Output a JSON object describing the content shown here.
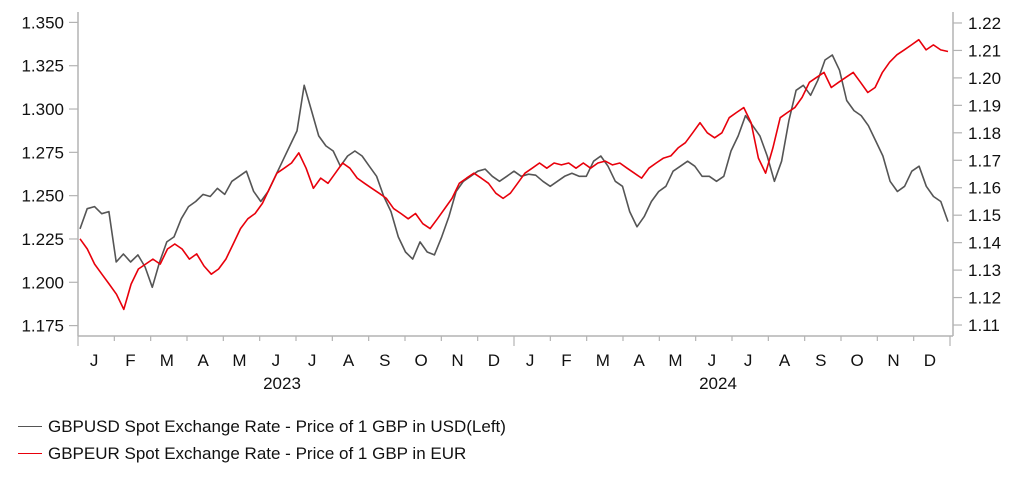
{
  "chart_data": {
    "type": "line",
    "title": "",
    "xlabel": "",
    "ylabel_left": "",
    "ylabel_right": "",
    "grid": false,
    "legend_position": "bottom-left",
    "x_start": "2023-01",
    "x_end": "2024-12",
    "x_frequency": "weekly",
    "month_labels": [
      "J",
      "F",
      "M",
      "A",
      "M",
      "J",
      "J",
      "A",
      "S",
      "O",
      "N",
      "D",
      "J",
      "F",
      "M",
      "A",
      "M",
      "J",
      "J",
      "A",
      "S",
      "O",
      "N",
      "D"
    ],
    "year_labels": [
      "2023",
      "2024"
    ],
    "y_left": {
      "ticks": [
        "1.175",
        "1.200",
        "1.225",
        "1.250",
        "1.275",
        "1.300",
        "1.325",
        "1.350"
      ],
      "range": [
        1.169,
        1.356
      ]
    },
    "y_right": {
      "ticks": [
        "1.11",
        "1.12",
        "1.13",
        "1.14",
        "1.15",
        "1.16",
        "1.17",
        "1.18",
        "1.19",
        "1.20",
        "1.21",
        "1.22"
      ],
      "range": [
        1.106,
        1.224
      ]
    },
    "series": [
      {
        "name": "GBPUSD Spot Exchange Rate - Price of 1 GBP in USD(Left)",
        "axis": "left",
        "color": "#555555",
        "values": [
          1.2308,
          1.2425,
          1.2437,
          1.2396,
          1.2408,
          1.2117,
          1.2163,
          1.2117,
          1.2158,
          1.2088,
          1.1971,
          1.2117,
          1.2233,
          1.2262,
          1.2367,
          1.2437,
          1.2466,
          1.2507,
          1.2495,
          1.2542,
          1.2507,
          1.2583,
          1.2612,
          1.2641,
          1.2525,
          1.2466,
          1.2524,
          1.2612,
          1.2699,
          1.2787,
          1.2874,
          1.3137,
          1.2991,
          1.2845,
          1.2787,
          1.2758,
          1.267,
          1.2729,
          1.2758,
          1.2729,
          1.267,
          1.2612,
          1.2495,
          1.2408,
          1.2262,
          1.2175,
          1.2134,
          1.2233,
          1.2175,
          1.2158,
          1.2262,
          1.2379,
          1.2524,
          1.2583,
          1.2612,
          1.2641,
          1.2653,
          1.2612,
          1.2583,
          1.2612,
          1.2641,
          1.2612,
          1.2624,
          1.2618,
          1.2583,
          1.2554,
          1.2583,
          1.2612,
          1.2629,
          1.2612,
          1.2612,
          1.2699,
          1.2729,
          1.267,
          1.2583,
          1.2554,
          1.2408,
          1.232,
          1.2379,
          1.2466,
          1.2524,
          1.2554,
          1.2641,
          1.267,
          1.2699,
          1.267,
          1.2612,
          1.2612,
          1.2583,
          1.2612,
          1.2758,
          1.2845,
          1.2962,
          1.2904,
          1.2845,
          1.2729,
          1.2583,
          1.2699,
          1.2933,
          1.3108,
          1.3137,
          1.3079,
          1.3166,
          1.3283,
          1.3312,
          1.3224,
          1.3049,
          1.2991,
          1.2962,
          1.2904,
          1.2816,
          1.2729,
          1.2583,
          1.2524,
          1.2554,
          1.2641,
          1.267,
          1.2554,
          1.2495,
          1.2466,
          1.235
        ],
        "values_note": "approximate weekly readings traced from the plot"
      },
      {
        "name": "GBPEUR Spot Exchange Rate - Price of 1 GBP in EUR",
        "axis": "right",
        "color": "#e8000b",
        "values": [
          1.1414,
          1.1377,
          1.1322,
          1.1285,
          1.1249,
          1.1212,
          1.1157,
          1.1249,
          1.1304,
          1.1322,
          1.134,
          1.1322,
          1.1377,
          1.1395,
          1.1377,
          1.134,
          1.1359,
          1.1315,
          1.1285,
          1.1304,
          1.134,
          1.1395,
          1.1451,
          1.1487,
          1.1506,
          1.1543,
          1.1598,
          1.1653,
          1.1671,
          1.169,
          1.1727,
          1.1671,
          1.1598,
          1.1635,
          1.1616,
          1.1653,
          1.169,
          1.1671,
          1.1635,
          1.1616,
          1.1598,
          1.158,
          1.1561,
          1.1524,
          1.1506,
          1.1487,
          1.1506,
          1.1469,
          1.1451,
          1.1487,
          1.1524,
          1.1561,
          1.1616,
          1.1635,
          1.1653,
          1.1635,
          1.1616,
          1.158,
          1.1561,
          1.158,
          1.1616,
          1.1653,
          1.1671,
          1.169,
          1.1671,
          1.169,
          1.1683,
          1.169,
          1.1671,
          1.169,
          1.1671,
          1.169,
          1.1697,
          1.1683,
          1.169,
          1.1671,
          1.1653,
          1.1635,
          1.1671,
          1.169,
          1.1708,
          1.1716,
          1.1745,
          1.1764,
          1.18,
          1.1837,
          1.18,
          1.1782,
          1.18,
          1.1855,
          1.1874,
          1.1892,
          1.1837,
          1.1708,
          1.1653,
          1.1745,
          1.1855,
          1.1874,
          1.1892,
          1.1929,
          1.1984,
          1.2002,
          1.202,
          1.1965,
          1.1984,
          1.2002,
          1.202,
          1.1984,
          1.1947,
          1.1965,
          1.202,
          1.2057,
          1.2084,
          1.2102,
          1.212,
          1.2139,
          1.2102,
          1.212,
          1.2102,
          1.2096
        ],
        "values_note": "approximate weekly readings traced from the plot"
      }
    ]
  },
  "legend": {
    "items": [
      {
        "label": "GBPUSD Spot Exchange Rate - Price of 1 GBP in USD(Left)",
        "color": "#555555"
      },
      {
        "label": "GBPEUR Spot Exchange Rate - Price of 1 GBP in EUR",
        "color": "#e8000b"
      }
    ]
  }
}
